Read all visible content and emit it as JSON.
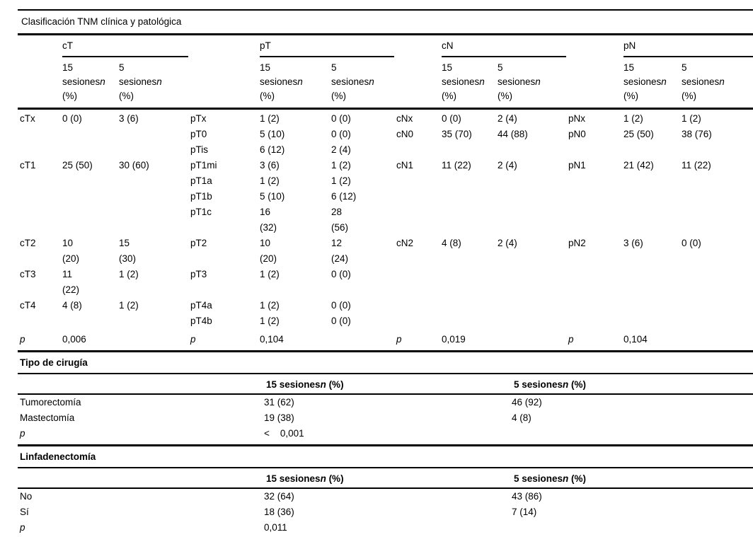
{
  "title": "Clasificación TNM clínica y patológica",
  "colors": {
    "text": "#000000",
    "background": "#ffffff",
    "rule": "#000000"
  },
  "tnm": {
    "groups": [
      "cT",
      "pT",
      "cN",
      "pN"
    ],
    "col_header": {
      "n15": "15",
      "n5": "5",
      "word": "sesiones",
      "n": "n",
      "pct": "(%)"
    },
    "rows": [
      [
        "cTx",
        "0 (0)",
        "3 (6)",
        "pTx",
        "1 (2)",
        "0 (0)",
        "cNx",
        "0 (0)",
        "2 (4)",
        "pNx",
        "1 (2)",
        "1 (2)"
      ],
      [
        "",
        "",
        "",
        "pT0",
        "5 (10)",
        "0 (0)",
        "cN0",
        "35 (70)",
        "44 (88)",
        "pN0",
        "25 (50)",
        "38 (76)"
      ],
      [
        "",
        "",
        "",
        "pTis",
        "6 (12)",
        "2 (4)",
        "",
        "",
        "",
        "",
        "",
        ""
      ],
      [
        "cT1",
        "25 (50)",
        "30 (60)",
        "pT1mi",
        "3 (6)",
        "1 (2)",
        "cN1",
        "11 (22)",
        "2 (4)",
        "pN1",
        "21 (42)",
        "11 (22)"
      ],
      [
        "",
        "",
        "",
        "pT1a",
        "1 (2)",
        "1 (2)",
        "",
        "",
        "",
        "",
        "",
        ""
      ],
      [
        "",
        "",
        "",
        "pT1b",
        "5 (10)",
        "6 (12)",
        "",
        "",
        "",
        "",
        "",
        ""
      ],
      [
        "",
        "",
        "",
        "pT1c",
        "16\n(32)",
        "28\n(56)",
        "",
        "",
        "",
        "",
        "",
        ""
      ],
      [
        "cT2",
        "10\n(20)",
        "15\n(30)",
        "pT2",
        "10\n(20)",
        "12\n(24)",
        "cN2",
        "4 (8)",
        "2 (4)",
        "pN2",
        "3 (6)",
        "0 (0)"
      ],
      [
        "cT3",
        "11\n(22)",
        "1 (2)",
        "pT3",
        "1 (2)",
        "0 (0)",
        "",
        "",
        "",
        "",
        "",
        ""
      ],
      [
        "cT4",
        "4 (8)",
        "1 (2)",
        "pT4a",
        "1 (2)",
        "0 (0)",
        "",
        "",
        "",
        "",
        "",
        ""
      ],
      [
        "",
        "",
        "",
        "pT4b",
        "1 (2)",
        "0 (0)",
        "",
        "",
        "",
        "",
        "",
        ""
      ]
    ],
    "p_row": {
      "label": "p",
      "cT": "0,006",
      "pT": "0,104",
      "cN": "0,019",
      "pN": "0,104"
    }
  },
  "section_headers": {
    "h15": {
      "pre": "15 sesiones",
      "n": "n",
      "post": " (%)"
    },
    "h5": {
      "pre": "5 sesiones",
      "n": "n",
      "post": " (%)"
    }
  },
  "cirugia": {
    "section_title": "Tipo de cirugía",
    "rows": [
      {
        "label": "Tumorectomía",
        "v15": "31 (62)",
        "v5": "46 (92)"
      },
      {
        "label": "Mastectomía",
        "v15": "19 (38)",
        "v5": "4 (8)"
      }
    ],
    "p_label": "p",
    "p_value": "<    0,001"
  },
  "linfadenectomia": {
    "section_title": "Linfadenectomía",
    "rows": [
      {
        "label": "No",
        "v15": "32 (64)",
        "v5": "43 (86)"
      },
      {
        "label": "Sí",
        "v15": "18 (36)",
        "v5": "7 (14)"
      }
    ],
    "p_label": "p",
    "p_value": "0,011"
  }
}
